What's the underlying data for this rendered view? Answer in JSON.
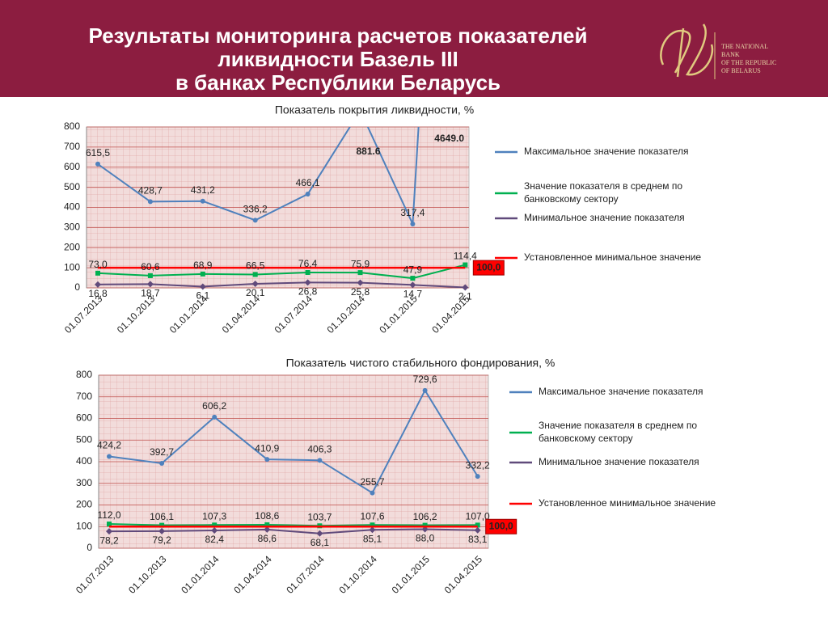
{
  "header": {
    "title": [
      "Результаты мониторинга расчетов показателей",
      "ликвидности Базель III",
      "в банках Республики Беларусь"
    ],
    "logo_text": [
      "THE NATIONAL",
      "BANK",
      "OF THE REPUBLIC",
      "OF BELARUS"
    ]
  },
  "chart_data": [
    {
      "type": "line",
      "title": "Показатель покрытия ликвидности, %",
      "categories": [
        "01.07.2013",
        "01.10.2013",
        "01.01.2014",
        "01.04.2014",
        "01.07.2014",
        "01.10.2014",
        "01.01.2015",
        "01.04.2015"
      ],
      "series": [
        {
          "name": "Максимальное значение показателя",
          "color": "#4f81bd",
          "values": [
            615.5,
            428.7,
            431.2,
            336.2,
            466.1,
            881.6,
            317.4,
            4649.0
          ],
          "value_labels": [
            "615,5",
            "428,7",
            "431,2",
            "336,2",
            "466,1",
            "881.6",
            "317,4",
            "4649.0"
          ]
        },
        {
          "name": "Значение показателя в среднем по банковскому сектору",
          "color": "#00b050",
          "values": [
            73.0,
            60.6,
            68.9,
            66.5,
            76.4,
            75.9,
            47.9,
            114.4
          ],
          "value_labels": [
            "73,0",
            "60,6",
            "68,9",
            "66,5",
            "76,4",
            "75,9",
            "47,9",
            "114,4"
          ]
        },
        {
          "name": "Минимальное значение показателя",
          "color": "#604a7b",
          "values": [
            16.8,
            18.7,
            6.1,
            20.1,
            26.8,
            25.8,
            14.7,
            2.1
          ],
          "value_labels": [
            "16,8",
            "18,7",
            "6,1",
            "20,1",
            "26,8",
            "25,8",
            "14,7",
            "2,1"
          ]
        },
        {
          "name": "Установленное минимальное значение",
          "color": "#ff0000",
          "values": [
            100,
            100,
            100,
            100,
            100,
            100,
            100,
            100
          ],
          "value_labels": [
            null,
            null,
            null,
            null,
            null,
            null,
            null,
            "100,0"
          ]
        }
      ],
      "ylim": [
        0,
        800
      ],
      "yticks": [
        0,
        100,
        200,
        300,
        400,
        500,
        600,
        700,
        800
      ],
      "grid": true
    },
    {
      "type": "line",
      "title": "Показатель чистого стабильного фондирования, %",
      "categories": [
        "01.07.2013",
        "01.10.2013",
        "01.01.2014",
        "01.04.2014",
        "01.07.2014",
        "01.10.2014",
        "01.01.2015",
        "01.04.2015"
      ],
      "series": [
        {
          "name": "Максимальное значение показателя",
          "color": "#4f81bd",
          "values": [
            424.2,
            392.7,
            606.2,
            410.9,
            406.3,
            255.7,
            729.6,
            332.2
          ],
          "value_labels": [
            "424,2",
            "392,7",
            "606,2",
            "410,9",
            "406,3",
            "255,7",
            "729,6",
            "332,2"
          ]
        },
        {
          "name": "Значение показателя в среднем по банковскому сектору",
          "color": "#00b050",
          "values": [
            112.0,
            106.1,
            107.3,
            108.6,
            103.7,
            107.6,
            106.2,
            107.0
          ],
          "value_labels": [
            "112,0",
            "106,1",
            "107,3",
            "108,6",
            "103,7",
            "107,6",
            "106,2",
            "107,0"
          ]
        },
        {
          "name": "Минимальное значение показателя",
          "color": "#604a7b",
          "values": [
            78.2,
            79.2,
            82.4,
            86.6,
            68.1,
            85.1,
            88.0,
            83.1
          ],
          "value_labels": [
            "78,2",
            "79,2",
            "82,4",
            "86,6",
            "68,1",
            "85,1",
            "88,0",
            "83,1"
          ]
        },
        {
          "name": "Установленное минимальное значение",
          "color": "#ff0000",
          "values": [
            100,
            100,
            100,
            100,
            100,
            100,
            100,
            100
          ],
          "value_labels": [
            null,
            null,
            null,
            null,
            null,
            null,
            null,
            "100,0"
          ]
        }
      ],
      "ylim": [
        0,
        800
      ],
      "yticks": [
        0,
        100,
        200,
        300,
        400,
        500,
        600,
        700,
        800
      ],
      "grid": true
    }
  ]
}
